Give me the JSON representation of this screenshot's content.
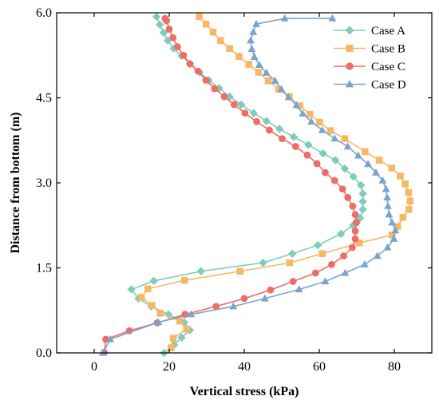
{
  "chart_data": {
    "type": "line",
    "xlabel": "Vertical stress (kPa)",
    "ylabel": "Distance from bottom (m)",
    "xlim": [
      -10,
      90
    ],
    "ylim": [
      0,
      6
    ],
    "xticks": [
      0,
      20,
      40,
      60,
      80
    ],
    "yticks": [
      0.0,
      1.5,
      3.0,
      4.5,
      6.0
    ],
    "ytick_labels": [
      "0.0",
      "1.5",
      "3.0",
      "4.5",
      "6.0"
    ],
    "legend_position": "top-right",
    "series": [
      {
        "name": "Case A",
        "color": "#7fccba",
        "marker": "diamond",
        "points": [
          [
            18.6,
            0.0
          ],
          [
            21.3,
            0.14
          ],
          [
            23.3,
            0.27
          ],
          [
            25.5,
            0.4
          ],
          [
            24.0,
            0.54
          ],
          [
            19.8,
            0.68
          ],
          [
            15.2,
            0.82
          ],
          [
            11.8,
            0.96
          ],
          [
            9.9,
            1.12
          ],
          [
            15.9,
            1.27
          ],
          [
            28.5,
            1.44
          ],
          [
            45.0,
            1.59
          ],
          [
            52.8,
            1.75
          ],
          [
            59.6,
            1.9
          ],
          [
            65.8,
            2.1
          ],
          [
            69.0,
            2.25
          ],
          [
            70.9,
            2.38
          ],
          [
            71.6,
            2.53
          ],
          [
            71.6,
            2.67
          ],
          [
            71.6,
            2.81
          ],
          [
            71.1,
            2.96
          ],
          [
            69.1,
            3.11
          ],
          [
            66.8,
            3.25
          ],
          [
            64.3,
            3.4
          ],
          [
            61.0,
            3.52
          ],
          [
            57.1,
            3.67
          ],
          [
            53.2,
            3.81
          ],
          [
            49.4,
            3.95
          ],
          [
            45.9,
            4.09
          ],
          [
            42.5,
            4.23
          ],
          [
            39.2,
            4.38
          ],
          [
            36.1,
            4.52
          ],
          [
            33.3,
            4.67
          ],
          [
            30.5,
            4.81
          ],
          [
            28.1,
            4.95
          ],
          [
            25.6,
            5.1
          ],
          [
            23.3,
            5.24
          ],
          [
            21.2,
            5.37
          ],
          [
            19.6,
            5.51
          ],
          [
            18.5,
            5.65
          ],
          [
            17.5,
            5.79
          ],
          [
            16.6,
            5.93
          ]
        ]
      },
      {
        "name": "Case B",
        "color": "#f7b765",
        "marker": "square",
        "points": [
          [
            20.5,
            0.09
          ],
          [
            21.1,
            0.26
          ],
          [
            24.6,
            0.42
          ],
          [
            22.8,
            0.56
          ],
          [
            17.6,
            0.7
          ],
          [
            15.4,
            0.84
          ],
          [
            12.6,
            0.98
          ],
          [
            14.3,
            1.13
          ],
          [
            24.1,
            1.28
          ],
          [
            38.9,
            1.44
          ],
          [
            52.1,
            1.59
          ],
          [
            60.8,
            1.75
          ],
          [
            70.7,
            1.94
          ],
          [
            79.4,
            2.08
          ],
          [
            80.9,
            2.23
          ],
          [
            82.3,
            2.39
          ],
          [
            83.9,
            2.53
          ],
          [
            84.2,
            2.68
          ],
          [
            83.8,
            2.83
          ],
          [
            82.9,
            2.98
          ],
          [
            81.6,
            3.12
          ],
          [
            79.3,
            3.26
          ],
          [
            76.0,
            3.4
          ],
          [
            72.2,
            3.55
          ],
          [
            66.8,
            3.78
          ],
          [
            63.0,
            3.92
          ],
          [
            60.1,
            4.07
          ],
          [
            57.5,
            4.21
          ],
          [
            54.8,
            4.36
          ],
          [
            52.0,
            4.52
          ],
          [
            49.2,
            4.65
          ],
          [
            46.4,
            4.8
          ],
          [
            43.8,
            4.95
          ],
          [
            41.2,
            5.09
          ],
          [
            38.6,
            5.23
          ],
          [
            36.1,
            5.37
          ],
          [
            33.7,
            5.51
          ],
          [
            31.7,
            5.66
          ],
          [
            29.8,
            5.8
          ],
          [
            28.0,
            5.93
          ]
        ]
      },
      {
        "name": "Case C",
        "color": "#ee6e64",
        "marker": "circle",
        "points": [
          [
            2.7,
            0.01
          ],
          [
            3.1,
            0.24
          ],
          [
            9.4,
            0.39
          ],
          [
            16.8,
            0.53
          ],
          [
            24.2,
            0.68
          ],
          [
            32.5,
            0.82
          ],
          [
            40.0,
            0.96
          ],
          [
            47.0,
            1.11
          ],
          [
            53.0,
            1.26
          ],
          [
            59.0,
            1.41
          ],
          [
            63.3,
            1.56
          ],
          [
            66.5,
            1.71
          ],
          [
            68.8,
            1.86
          ],
          [
            69.6,
            2.01
          ],
          [
            69.6,
            2.15
          ],
          [
            69.9,
            2.3
          ],
          [
            69.6,
            2.44
          ],
          [
            68.9,
            2.59
          ],
          [
            67.6,
            2.74
          ],
          [
            66.2,
            2.89
          ],
          [
            64.1,
            3.04
          ],
          [
            61.6,
            3.18
          ],
          [
            59.4,
            3.34
          ],
          [
            56.8,
            3.49
          ],
          [
            53.7,
            3.64
          ],
          [
            50.1,
            3.78
          ],
          [
            46.7,
            3.93
          ],
          [
            43.3,
            4.08
          ],
          [
            40.2,
            4.23
          ],
          [
            37.3,
            4.38
          ],
          [
            34.7,
            4.52
          ],
          [
            32.1,
            4.66
          ],
          [
            29.8,
            4.81
          ],
          [
            27.7,
            4.97
          ],
          [
            25.5,
            5.1
          ],
          [
            23.8,
            5.25
          ],
          [
            22.2,
            5.4
          ],
          [
            21.0,
            5.56
          ],
          [
            20.0,
            5.71
          ],
          [
            19.3,
            5.86
          ],
          [
            18.9,
            5.9
          ]
        ]
      },
      {
        "name": "Case D",
        "color": "#7aa3cf",
        "marker": "triangle",
        "points": [
          [
            2.3,
            0.0
          ],
          [
            4.3,
            0.24
          ],
          [
            17.1,
            0.54
          ],
          [
            25.8,
            0.68
          ],
          [
            37.1,
            0.82
          ],
          [
            45.5,
            0.96
          ],
          [
            54.6,
            1.12
          ],
          [
            61.6,
            1.26
          ],
          [
            66.9,
            1.41
          ],
          [
            72.1,
            1.56
          ],
          [
            75.5,
            1.71
          ],
          [
            78.2,
            1.86
          ],
          [
            79.9,
            2.01
          ],
          [
            80.3,
            2.16
          ],
          [
            79.4,
            2.3
          ],
          [
            78.6,
            2.44
          ],
          [
            78.3,
            2.59
          ],
          [
            78.1,
            2.74
          ],
          [
            77.8,
            2.89
          ],
          [
            76.9,
            3.04
          ],
          [
            75.1,
            3.18
          ],
          [
            73.0,
            3.33
          ],
          [
            70.4,
            3.48
          ],
          [
            67.6,
            3.64
          ],
          [
            64.1,
            3.78
          ],
          [
            60.8,
            3.93
          ],
          [
            57.9,
            4.08
          ],
          [
            55.6,
            4.22
          ],
          [
            53.9,
            4.37
          ],
          [
            51.8,
            4.51
          ],
          [
            49.9,
            4.65
          ],
          [
            48.2,
            4.8
          ],
          [
            45.9,
            4.94
          ],
          [
            44.0,
            5.08
          ],
          [
            42.7,
            5.22
          ],
          [
            42.0,
            5.36
          ],
          [
            41.7,
            5.51
          ],
          [
            42.4,
            5.66
          ],
          [
            43.2,
            5.8
          ],
          [
            50.8,
            5.9
          ],
          [
            63.5,
            5.9
          ]
        ]
      }
    ]
  }
}
